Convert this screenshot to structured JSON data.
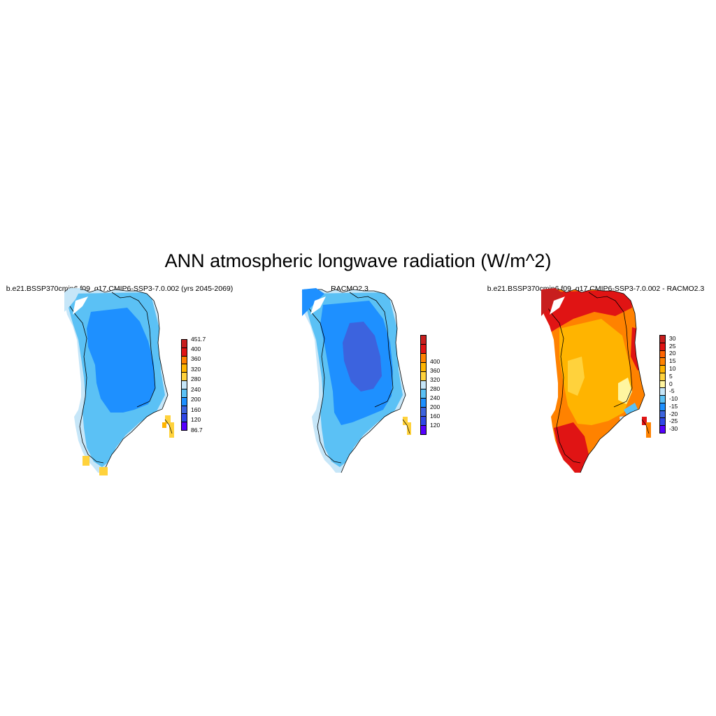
{
  "title": "ANN atmospheric longwave radiation (W/m^2)",
  "panels": [
    {
      "title": "b.e21.BSSP370cmip6.f09_g17.CMIP6-SSP3-7.0.002 (yrs 2045-2069)",
      "colorbar": {
        "colors": [
          "#5500ff",
          "#2f46e6",
          "#3c63de",
          "#1e90ff",
          "#5bc1f5",
          "#c6e6f8",
          "#ffd23c",
          "#ffb400",
          "#ff8200",
          "#e01414",
          "#c81e1e"
        ],
        "labels": [
          "86.7",
          "120",
          "160",
          "200",
          "240",
          "280",
          "320",
          "360",
          "400",
          "451.7"
        ],
        "min_label": "86.7",
        "max_label": "451.7"
      }
    },
    {
      "title": "RACMO2.3",
      "colorbar": {
        "colors": [
          "#5500ff",
          "#2f46e6",
          "#3c63de",
          "#1e90ff",
          "#5bc1f5",
          "#c6e6f8",
          "#ffd23c",
          "#ffb400",
          "#ff8200",
          "#e01414",
          "#c81e1e"
        ],
        "labels": [
          "120",
          "160",
          "200",
          "240",
          "280",
          "320",
          "360",
          "400"
        ]
      }
    },
    {
      "title": "b.e21.BSSP370cmip6.f09_g17.CMIP6-SSP3-7.0.002 - RACMO2.3",
      "colorbar": {
        "colors": [
          "#5500ff",
          "#2f46e6",
          "#3c63de",
          "#1e90ff",
          "#5bc1f5",
          "#c6e6f8",
          "#fff5a0",
          "#ffd23c",
          "#ffb400",
          "#ff8200",
          "#ff6400",
          "#e01414",
          "#c81e1e"
        ],
        "labels": [
          "-30",
          "-25",
          "-20",
          "-15",
          "-10",
          "-5",
          "0",
          "5",
          "10",
          "15",
          "20",
          "25",
          "30"
        ]
      }
    }
  ]
}
